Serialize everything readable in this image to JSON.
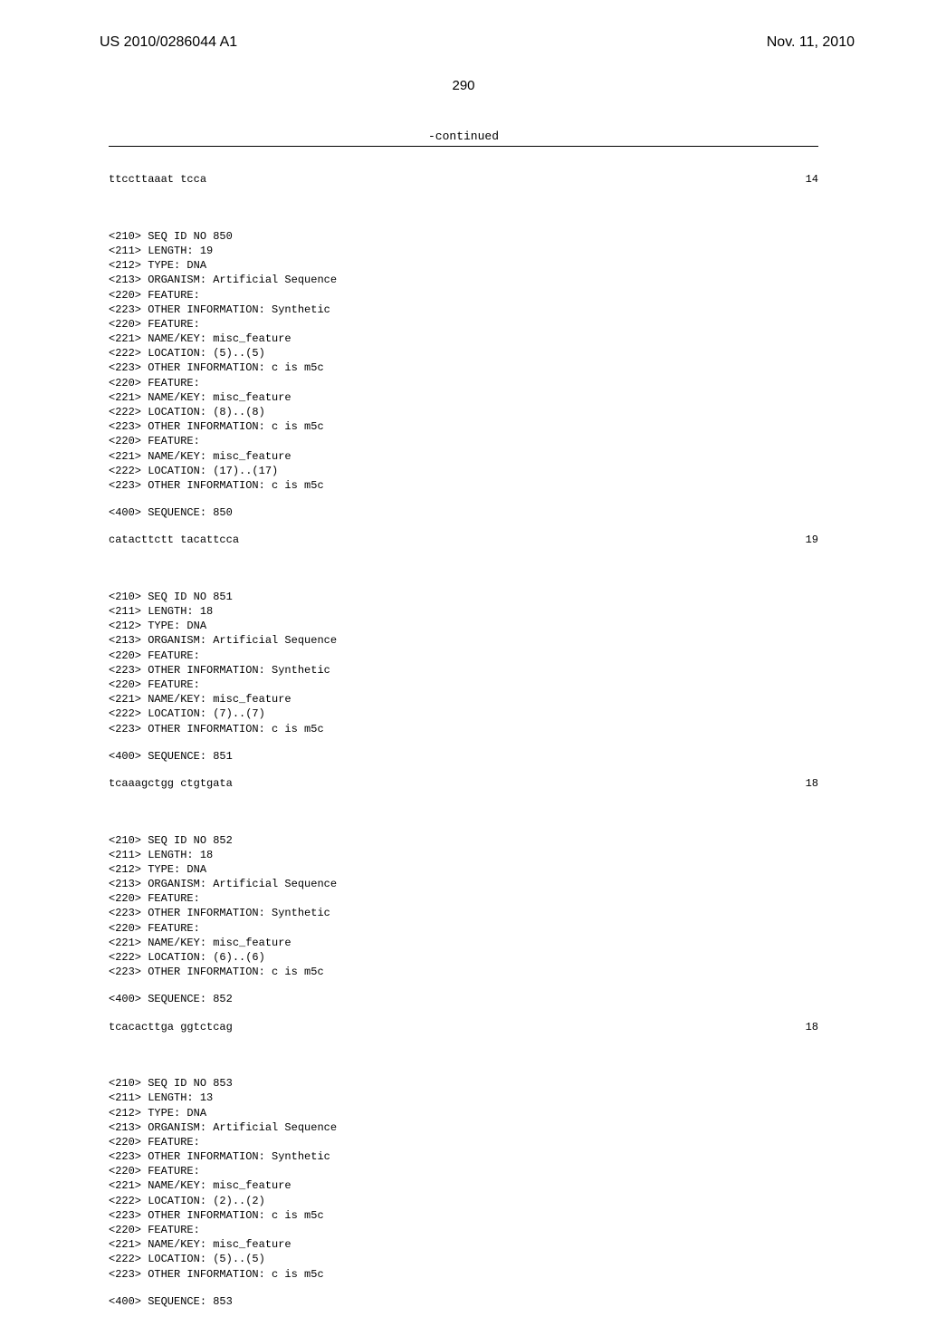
{
  "header": {
    "pub_number": "US 2010/0286044 A1",
    "pub_date": "Nov. 11, 2010"
  },
  "page_number": "290",
  "continued": "-continued",
  "seq_prefix": {
    "sequence": "ttccttaaat tcca",
    "length": "14"
  },
  "entries": [
    {
      "lines": [
        "<210> SEQ ID NO 850",
        "<211> LENGTH: 19",
        "<212> TYPE: DNA",
        "<213> ORGANISM: Artificial Sequence",
        "<220> FEATURE:",
        "<223> OTHER INFORMATION: Synthetic",
        "<220> FEATURE:",
        "<221> NAME/KEY: misc_feature",
        "<222> LOCATION: (5)..(5)",
        "<223> OTHER INFORMATION: c is m5c",
        "<220> FEATURE:",
        "<221> NAME/KEY: misc_feature",
        "<222> LOCATION: (8)..(8)",
        "<223> OTHER INFORMATION: c is m5c",
        "<220> FEATURE:",
        "<221> NAME/KEY: misc_feature",
        "<222> LOCATION: (17)..(17)",
        "<223> OTHER INFORMATION: c is m5c"
      ],
      "sequence_header": "<400> SEQUENCE: 850",
      "sequence": "catacttctt tacattcca",
      "length": "19"
    },
    {
      "lines": [
        "<210> SEQ ID NO 851",
        "<211> LENGTH: 18",
        "<212> TYPE: DNA",
        "<213> ORGANISM: Artificial Sequence",
        "<220> FEATURE:",
        "<223> OTHER INFORMATION: Synthetic",
        "<220> FEATURE:",
        "<221> NAME/KEY: misc_feature",
        "<222> LOCATION: (7)..(7)",
        "<223> OTHER INFORMATION: c is m5c"
      ],
      "sequence_header": "<400> SEQUENCE: 851",
      "sequence": "tcaaagctgg ctgtgata",
      "length": "18"
    },
    {
      "lines": [
        "<210> SEQ ID NO 852",
        "<211> LENGTH: 18",
        "<212> TYPE: DNA",
        "<213> ORGANISM: Artificial Sequence",
        "<220> FEATURE:",
        "<223> OTHER INFORMATION: Synthetic",
        "<220> FEATURE:",
        "<221> NAME/KEY: misc_feature",
        "<222> LOCATION: (6)..(6)",
        "<223> OTHER INFORMATION: c is m5c"
      ],
      "sequence_header": "<400> SEQUENCE: 852",
      "sequence": "tcacacttga ggtctcag",
      "length": "18"
    },
    {
      "lines": [
        "<210> SEQ ID NO 853",
        "<211> LENGTH: 13",
        "<212> TYPE: DNA",
        "<213> ORGANISM: Artificial Sequence",
        "<220> FEATURE:",
        "<223> OTHER INFORMATION: Synthetic",
        "<220> FEATURE:",
        "<221> NAME/KEY: misc_feature",
        "<222> LOCATION: (2)..(2)",
        "<223> OTHER INFORMATION: c is m5c",
        "<220> FEATURE:",
        "<221> NAME/KEY: misc_feature",
        "<222> LOCATION: (5)..(5)",
        "<223> OTHER INFORMATION: c is m5c"
      ],
      "sequence_header": "<400> SEQUENCE: 853",
      "sequence": "",
      "length": ""
    }
  ]
}
